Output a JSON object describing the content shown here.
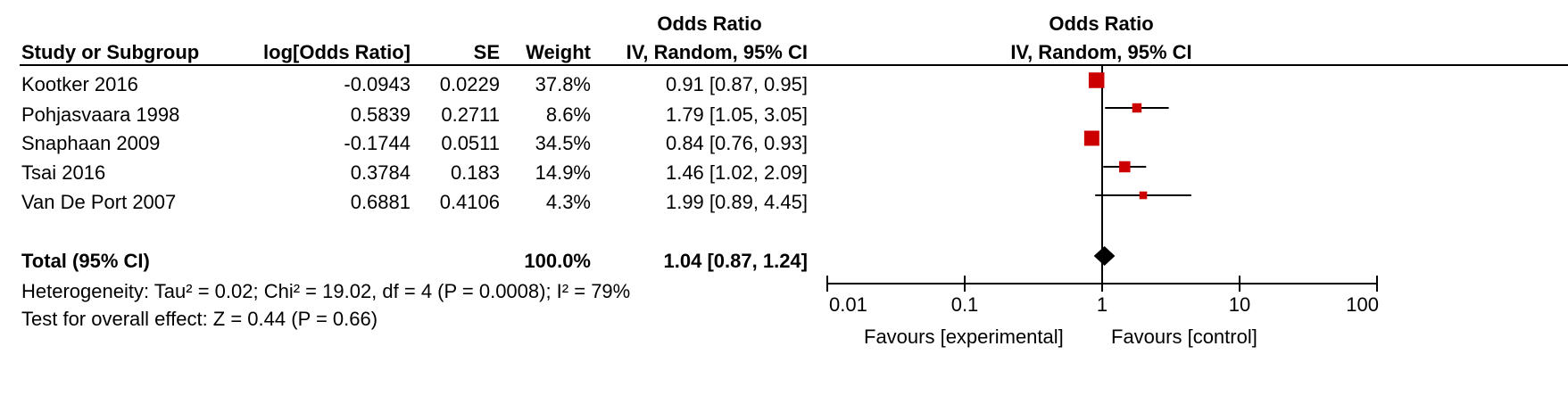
{
  "table": {
    "group_header_or_col": "Odds Ratio",
    "col_study": "Study or Subgroup",
    "col_logor": "log[Odds Ratio]",
    "col_se": "SE",
    "col_weight": "Weight",
    "col_or_ci": "IV, Random, 95% CI",
    "rows": [
      {
        "study": "Kootker 2016",
        "logor": "-0.0943",
        "se": "0.0229",
        "weight": "37.8%",
        "or_ci": "0.91 [0.87, 0.95]"
      },
      {
        "study": "Pohjasvaara 1998",
        "logor": "0.5839",
        "se": "0.2711",
        "weight": "8.6%",
        "or_ci": "1.79 [1.05, 3.05]"
      },
      {
        "study": "Snaphaan 2009",
        "logor": "-0.1744",
        "se": "0.0511",
        "weight": "34.5%",
        "or_ci": "0.84 [0.76, 0.93]"
      },
      {
        "study": "Tsai 2016",
        "logor": "0.3784",
        "se": "0.183",
        "weight": "14.9%",
        "or_ci": "1.46 [1.02, 2.09]"
      },
      {
        "study": "Van De Port 2007",
        "logor": "0.6881",
        "se": "0.4106",
        "weight": "4.3%",
        "or_ci": "1.99 [0.89, 4.45]"
      }
    ],
    "total": {
      "label": "Total (95% CI)",
      "weight": "100.0%",
      "or_ci": "1.04 [0.87, 1.24]"
    },
    "heterogeneity": "Heterogeneity: Tau² = 0.02; Chi² = 19.02, df = 4 (P = 0.0008); I² = 79%",
    "overall": "Test for overall effect: Z = 0.44 (P = 0.66)"
  },
  "chart_data": {
    "type": "scatter",
    "title": "Odds Ratio",
    "subtitle": "IV, Random, 95% CI",
    "x_scale": "log",
    "xlim": [
      0.01,
      100
    ],
    "ticks": [
      0.01,
      0.1,
      1,
      10,
      100
    ],
    "tick_labels": [
      "0.01",
      "0.1",
      "1",
      "10",
      "100"
    ],
    "null_line": 1,
    "favours_left": "Favours [experimental]",
    "favours_right": "Favours [control]",
    "marker_color": "#cc0000",
    "studies": [
      {
        "name": "Kootker 2016",
        "or": 0.91,
        "lo": 0.87,
        "hi": 0.95,
        "weight": 37.8
      },
      {
        "name": "Pohjasvaara 1998",
        "or": 1.79,
        "lo": 1.05,
        "hi": 3.05,
        "weight": 8.6
      },
      {
        "name": "Snaphaan 2009",
        "or": 0.84,
        "lo": 0.76,
        "hi": 0.93,
        "weight": 34.5
      },
      {
        "name": "Tsai 2016",
        "or": 1.46,
        "lo": 1.02,
        "hi": 2.09,
        "weight": 14.9
      },
      {
        "name": "Van De Port 2007",
        "or": 1.99,
        "lo": 0.89,
        "hi": 4.45,
        "weight": 4.3
      }
    ],
    "summary": {
      "or": 1.04,
      "lo": 0.87,
      "hi": 1.24
    }
  }
}
